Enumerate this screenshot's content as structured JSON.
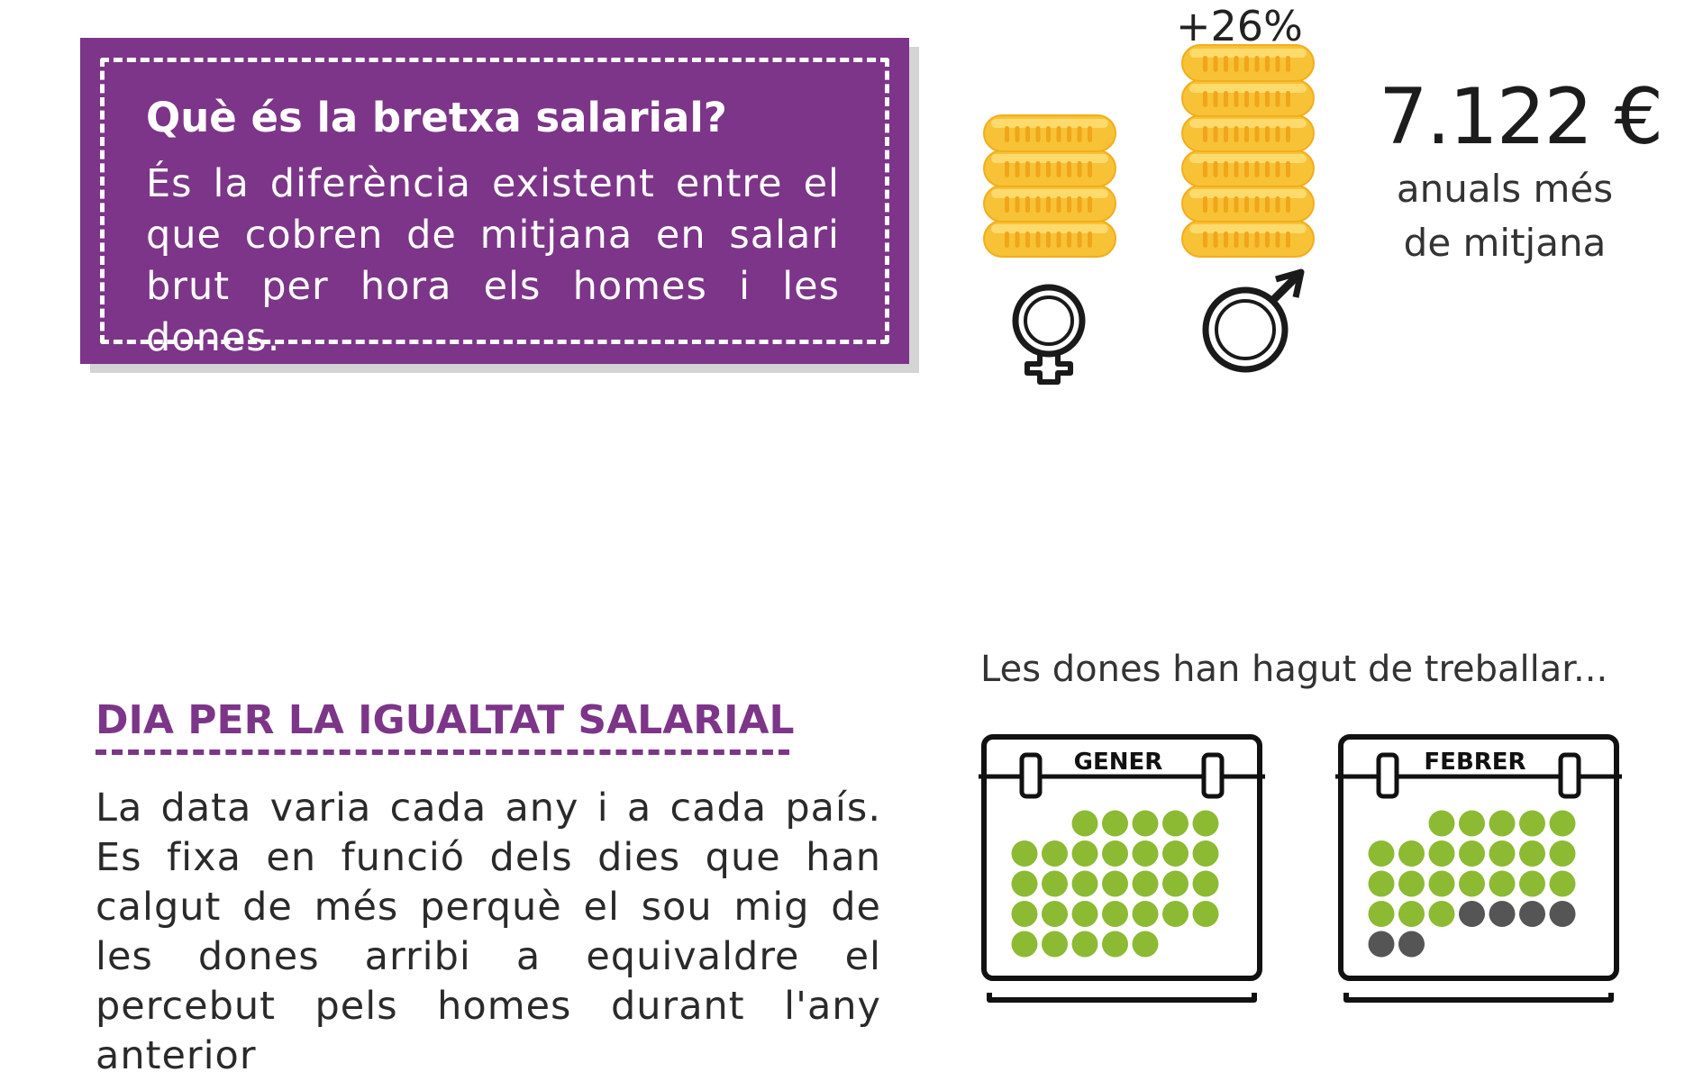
{
  "definition": {
    "title": "Què és la bretxa salarial?",
    "text": "És la diferència existent entre el que cobren de mitjana en salari brut per hora els homes i les dones."
  },
  "comparison": {
    "difference_percent": "+26%",
    "amount": "7.122 €",
    "amount_caption_line1": "anuals més",
    "amount_caption_line2": "de mitjana",
    "female_coins": 4,
    "male_coins": 6,
    "coin_color": "#f7c236",
    "icons": [
      "female-symbol-icon",
      "male-symbol-icon"
    ]
  },
  "equal_pay_day": {
    "title": "DIA PER LA IGUALTAT SALARIAL",
    "text": "La data varia cada any i a cada país. Es fixa en funció dels dies que han calgut de més perquè el sou mig de les dones arribi a equivaldre el percebut pels homes durant l'any anterior"
  },
  "calendars": {
    "caption": "Les dones han hagut de treballar...",
    "worked_color": "#8cba33",
    "remaining_color": "#555555",
    "months": [
      {
        "name": "GENER",
        "start_offset": 2,
        "days": 31,
        "worked": 31
      },
      {
        "name": "FEBRER",
        "start_offset": 2,
        "days": 28,
        "worked": 22
      }
    ]
  }
}
